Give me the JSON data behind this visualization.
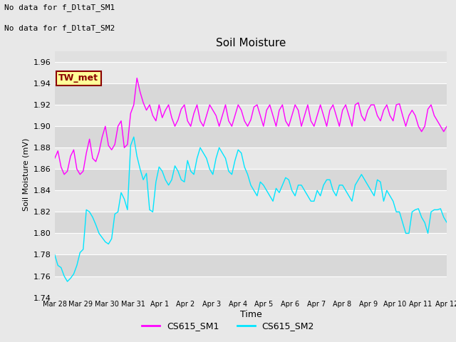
{
  "title": "Soil Moisture",
  "xlabel": "Time",
  "ylabel": "Soil Moisture (mV)",
  "ylim": [
    1.74,
    1.97
  ],
  "yticks": [
    1.74,
    1.76,
    1.78,
    1.8,
    1.82,
    1.84,
    1.86,
    1.88,
    1.9,
    1.92,
    1.94,
    1.96
  ],
  "bg_color": "#e8e8e8",
  "plot_bg_color": "#e0e0e0",
  "stripe_color1": "#e8e8e8",
  "stripe_color2": "#d8d8d8",
  "line1_color": "#ff00ff",
  "line2_color": "#00e5ff",
  "legend_labels": [
    "CS615_SM1",
    "CS615_SM2"
  ],
  "annotation_text1": "No data for f_DltaT_SM1",
  "annotation_text2": "No data for f_DltaT_SM2",
  "box_label": "TW_met",
  "box_facecolor": "#ffff99",
  "box_edgecolor": "#8b0000",
  "box_text_color": "#8b0000",
  "x_tick_labels": [
    "Mar 28",
    "Mar 29",
    "Mar 30",
    "Mar 31",
    "Apr 1",
    "Apr 2",
    "Apr 3",
    "Apr 4",
    "Apr 5",
    "Apr 6",
    "Apr 7",
    "Apr 8",
    "Apr 9",
    "Apr 10",
    "Apr 11",
    "Apr 12"
  ],
  "sm1_values": [
    1.87,
    1.877,
    1.862,
    1.855,
    1.858,
    1.872,
    1.878,
    1.86,
    1.855,
    1.858,
    1.875,
    1.888,
    1.87,
    1.867,
    1.876,
    1.89,
    1.9,
    1.882,
    1.878,
    1.883,
    1.9,
    1.905,
    1.88,
    1.883,
    1.912,
    1.92,
    1.945,
    1.932,
    1.922,
    1.915,
    1.92,
    1.91,
    1.905,
    1.92,
    1.908,
    1.915,
    1.92,
    1.908,
    1.9,
    1.906,
    1.916,
    1.92,
    1.905,
    1.9,
    1.912,
    1.92,
    1.905,
    1.9,
    1.91,
    1.92,
    1.915,
    1.91,
    1.9,
    1.91,
    1.92,
    1.905,
    1.9,
    1.91,
    1.92,
    1.915,
    1.905,
    1.9,
    1.906,
    1.918,
    1.92,
    1.91,
    1.9,
    1.915,
    1.92,
    1.91,
    1.9,
    1.915,
    1.92,
    1.905,
    1.9,
    1.91,
    1.92,
    1.915,
    1.9,
    1.91,
    1.92,
    1.905,
    1.9,
    1.91,
    1.92,
    1.91,
    1.9,
    1.915,
    1.92,
    1.91,
    1.9,
    1.915,
    1.92,
    1.91,
    1.9,
    1.92,
    1.922,
    1.91,
    1.905,
    1.915,
    1.92,
    1.92,
    1.91,
    1.905,
    1.915,
    1.92,
    1.91,
    1.905,
    1.92,
    1.921,
    1.91,
    1.9,
    1.91,
    1.915,
    1.91,
    1.9,
    1.895,
    1.9,
    1.916,
    1.92,
    1.91,
    1.905,
    1.9,
    1.895,
    1.9
  ],
  "sm2_values": [
    1.78,
    1.77,
    1.768,
    1.76,
    1.755,
    1.758,
    1.762,
    1.77,
    1.782,
    1.785,
    1.822,
    1.82,
    1.815,
    1.808,
    1.8,
    1.796,
    1.792,
    1.79,
    1.795,
    1.818,
    1.82,
    1.838,
    1.832,
    1.822,
    1.882,
    1.89,
    1.872,
    1.86,
    1.85,
    1.856,
    1.822,
    1.82,
    1.848,
    1.862,
    1.858,
    1.85,
    1.845,
    1.85,
    1.863,
    1.858,
    1.85,
    1.848,
    1.868,
    1.858,
    1.855,
    1.87,
    1.88,
    1.875,
    1.87,
    1.86,
    1.855,
    1.87,
    1.88,
    1.875,
    1.87,
    1.858,
    1.855,
    1.868,
    1.878,
    1.875,
    1.862,
    1.855,
    1.845,
    1.84,
    1.835,
    1.848,
    1.845,
    1.84,
    1.835,
    1.83,
    1.842,
    1.838,
    1.845,
    1.852,
    1.85,
    1.84,
    1.835,
    1.845,
    1.845,
    1.84,
    1.835,
    1.83,
    1.83,
    1.84,
    1.835,
    1.845,
    1.85,
    1.85,
    1.84,
    1.835,
    1.845,
    1.845,
    1.84,
    1.835,
    1.83,
    1.845,
    1.85,
    1.855,
    1.85,
    1.845,
    1.84,
    1.835,
    1.85,
    1.848,
    1.83,
    1.84,
    1.835,
    1.83,
    1.82,
    1.82,
    1.81,
    1.8,
    1.8,
    1.82,
    1.822,
    1.823,
    1.815,
    1.81,
    1.8,
    1.82,
    1.822,
    1.822,
    1.823,
    1.815,
    1.81
  ]
}
